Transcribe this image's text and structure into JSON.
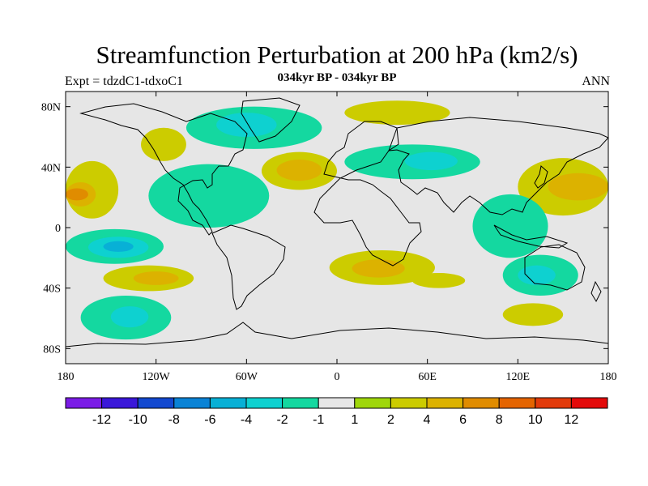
{
  "title": "Streamfunction Perturbation at 200 hPa (km2/s)",
  "left_label": "Expt = tdzdC1-tdxoC1",
  "center_label": "034kyr BP - 034kyr BP",
  "right_label": "ANN",
  "chart_data": {
    "type": "filled-contour-map",
    "variable": "Streamfunction Perturbation",
    "level": "200 hPa",
    "units": "km2/s",
    "x_range": [
      -180,
      180
    ],
    "y_range": [
      -90,
      90
    ],
    "x_ticks": [
      {
        "value": -180,
        "label": "180"
      },
      {
        "value": -120,
        "label": "120W"
      },
      {
        "value": -60,
        "label": "60W"
      },
      {
        "value": 0,
        "label": "0"
      },
      {
        "value": 60,
        "label": "60E"
      },
      {
        "value": 120,
        "label": "120E"
      },
      {
        "value": 180,
        "label": "180"
      }
    ],
    "y_ticks": [
      {
        "value": 80,
        "label": "80N"
      },
      {
        "value": 40,
        "label": "40N"
      },
      {
        "value": 0,
        "label": "0"
      },
      {
        "value": -40,
        "label": "40S"
      },
      {
        "value": -80,
        "label": "80S"
      }
    ],
    "colorbar": {
      "colors": [
        "#7b1ce6",
        "#3a17d9",
        "#1349d0",
        "#0a83d6",
        "#08b0d6",
        "#0ed1d0",
        "#14d8a0",
        "#e6e6e6",
        "#9fd70a",
        "#cccc00",
        "#dcb200",
        "#e08c00",
        "#e46400",
        "#e23a0a",
        "#e30a0a"
      ],
      "labels": [
        "-12",
        "-10",
        "-8",
        "-6",
        "-4",
        "-2",
        "-1",
        "1",
        "2",
        "4",
        "6",
        "8",
        "10",
        "12"
      ]
    },
    "regions": [
      {
        "name": "north-pacific-west",
        "level": "2",
        "lon": [
          -180,
          -145
        ],
        "lat": [
          6,
          44
        ]
      },
      {
        "name": "north-pacific-west-core",
        "level": "4",
        "lon": [
          -180,
          -160
        ],
        "lat": [
          14,
          30
        ]
      },
      {
        "name": "north-pacific-core",
        "level": "6",
        "lon": [
          -180,
          -165
        ],
        "lat": [
          18,
          26
        ]
      },
      {
        "name": "tropical-east-pacific",
        "level": "-1",
        "lon": [
          -180,
          -115
        ],
        "lat": [
          -24,
          -1
        ]
      },
      {
        "name": "tropical-east-pacific-inner",
        "level": "-2",
        "lon": [
          -165,
          -125
        ],
        "lat": [
          -20,
          -6
        ]
      },
      {
        "name": "tropical-east-pacific-core",
        "level": "-4",
        "lon": [
          -155,
          -135
        ],
        "lat": [
          -16,
          -9
        ]
      },
      {
        "name": "south-pacific-mid",
        "level": "2",
        "lon": [
          -155,
          -95
        ],
        "lat": [
          -42,
          -25
        ]
      },
      {
        "name": "south-pacific-mid-core",
        "level": "4",
        "lon": [
          -135,
          -105
        ],
        "lat": [
          -38,
          -29
        ]
      },
      {
        "name": "south-pacific-high",
        "level": "-1",
        "lon": [
          -170,
          -110
        ],
        "lat": [
          -74,
          -45
        ]
      },
      {
        "name": "south-pacific-high-core",
        "level": "-2",
        "lon": [
          -150,
          -125
        ],
        "lat": [
          -66,
          -52
        ]
      },
      {
        "name": "north-america-south",
        "level": "-1",
        "lon": [
          -125,
          -45
        ],
        "lat": [
          0,
          42
        ]
      },
      {
        "name": "north-america-west",
        "level": "2",
        "lon": [
          -130,
          -100
        ],
        "lat": [
          44,
          66
        ]
      },
      {
        "name": "canada-greenland",
        "level": "-1",
        "lon": [
          -100,
          -10
        ],
        "lat": [
          52,
          80
        ]
      },
      {
        "name": "canada-greenland-core",
        "level": "-2",
        "lon": [
          -80,
          -40
        ],
        "lat": [
          60,
          76
        ]
      },
      {
        "name": "north-atlantic",
        "level": "2",
        "lon": [
          -50,
          0
        ],
        "lat": [
          25,
          50
        ]
      },
      {
        "name": "north-atlantic-core",
        "level": "4",
        "lon": [
          -40,
          -10
        ],
        "lat": [
          31,
          45
        ]
      },
      {
        "name": "arctic-scandinavia",
        "level": "2",
        "lon": [
          5,
          75
        ],
        "lat": [
          68,
          84
        ]
      },
      {
        "name": "eurasia-belt",
        "level": "-1",
        "lon": [
          5,
          95
        ],
        "lat": [
          32,
          55
        ]
      },
      {
        "name": "eurasia-belt-core",
        "level": "-2",
        "lon": [
          45,
          80
        ],
        "lat": [
          38,
          50
        ]
      },
      {
        "name": "west-pacific-subtropics",
        "level": "2",
        "lon": [
          120,
          180
        ],
        "lat": [
          8,
          46
        ]
      },
      {
        "name": "west-pacific-subtropics-core",
        "level": "4",
        "lon": [
          140,
          180
        ],
        "lat": [
          18,
          36
        ]
      },
      {
        "name": "maritime-continent",
        "level": "-1",
        "lon": [
          90,
          140
        ],
        "lat": [
          -20,
          22
        ]
      },
      {
        "name": "southern-africa",
        "level": "2",
        "lon": [
          -5,
          65
        ],
        "lat": [
          -38,
          -15
        ]
      },
      {
        "name": "southern-africa-core",
        "level": "4",
        "lon": [
          10,
          45
        ],
        "lat": [
          -33,
          -21
        ]
      },
      {
        "name": "indian-ocean-south",
        "level": "2",
        "lon": [
          50,
          85
        ],
        "lat": [
          -40,
          -30
        ]
      },
      {
        "name": "australia",
        "level": "-1",
        "lon": [
          110,
          160
        ],
        "lat": [
          -45,
          -18
        ]
      },
      {
        "name": "australia-core",
        "level": "-2",
        "lon": [
          120,
          145
        ],
        "lat": [
          -38,
          -25
        ]
      },
      {
        "name": "south-indian-high-lat",
        "level": "2",
        "lon": [
          110,
          150
        ],
        "lat": [
          -65,
          -50
        ]
      }
    ]
  }
}
